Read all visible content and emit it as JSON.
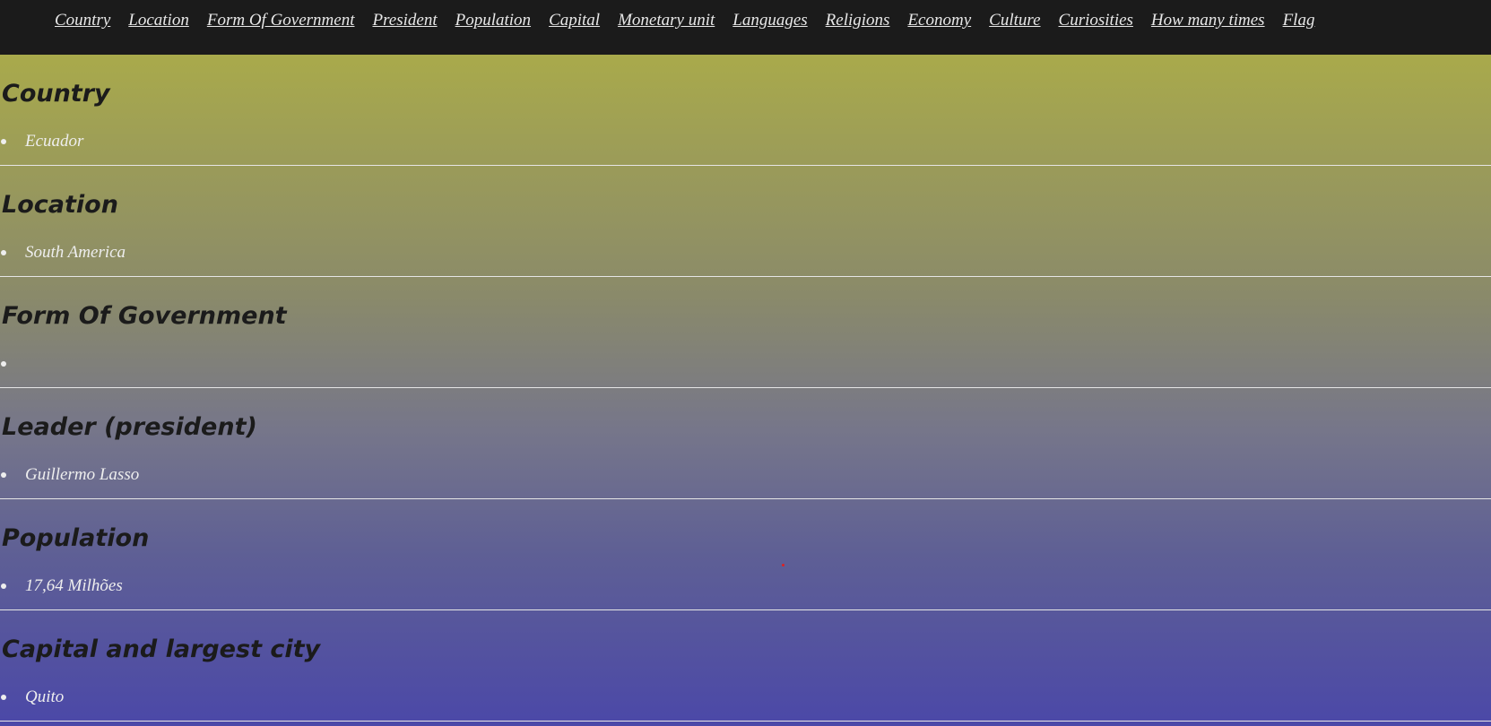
{
  "nav": {
    "links": [
      "Country",
      "Location",
      "Form Of Government",
      "President",
      "Population",
      "Capital",
      "Monetary unit",
      "Languages",
      "Religions",
      "Economy",
      "Culture",
      "Curiosities",
      "How many times",
      "Flag"
    ]
  },
  "sections": [
    {
      "heading": "Country",
      "value": "Ecuador"
    },
    {
      "heading": "Location",
      "value": "South America"
    },
    {
      "heading": "Form Of Government",
      "value": ""
    },
    {
      "heading": "Leader (president)",
      "value": "Guillermo Lasso"
    },
    {
      "heading": "Population",
      "value": "17,64 Milhões"
    },
    {
      "heading": "Capital and largest city",
      "value": "Quito"
    }
  ],
  "colors": {
    "nav_background": "#1b1b1b",
    "heading_text": "#1b1b1b",
    "value_text": "#eeeeee",
    "gradient_top": "#a9aa4b",
    "gradient_bottom": "#4b48a8"
  }
}
